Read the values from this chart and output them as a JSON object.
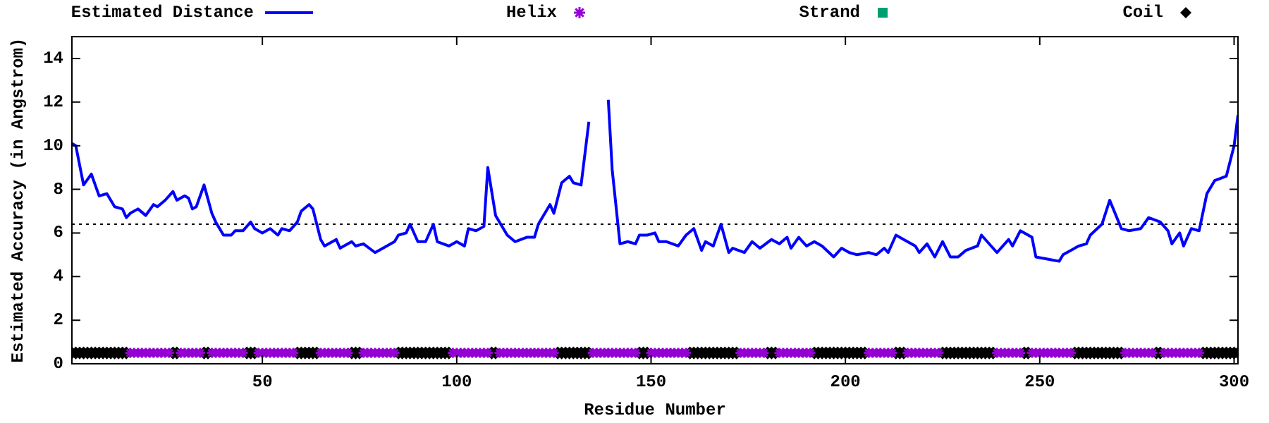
{
  "chart_data": {
    "type": "line",
    "xlabel": "Residue Number",
    "ylabel": "Estimated Accuracy (in Angstrom)",
    "xlim": [
      1,
      301
    ],
    "xticks": [
      50,
      100,
      150,
      200,
      250,
      300
    ],
    "ylim": [
      0,
      15
    ],
    "yticks": [
      0,
      2,
      4,
      6,
      8,
      10,
      12,
      14
    ],
    "legend": "top",
    "ref_lines": [
      {
        "axis": "y",
        "value": 6.4,
        "color": "#000000",
        "line_style": "dotted"
      }
    ],
    "series": [
      {
        "name": "Estimated Distance",
        "color": "#0000ff",
        "marker": "none",
        "x": [
          1,
          2,
          4,
          6,
          8,
          10,
          12,
          14,
          15,
          16,
          18,
          20,
          22,
          23,
          25,
          27,
          28,
          30,
          31,
          32,
          33,
          35,
          37,
          38,
          40,
          42,
          43,
          45,
          47,
          48,
          50,
          52,
          54,
          55,
          57,
          59,
          60,
          62,
          63,
          64,
          65,
          66,
          69,
          70,
          73,
          74,
          76,
          79,
          82,
          84,
          85,
          87,
          88,
          90,
          92,
          94,
          95,
          98,
          100,
          102,
          103,
          105,
          107,
          108,
          110,
          113,
          115,
          118,
          120,
          121,
          124,
          125,
          127,
          129,
          130,
          132,
          134,
          135,
          137,
          139,
          140,
          141,
          142,
          144,
          146,
          147,
          149,
          151,
          152,
          154,
          157,
          159,
          161,
          163,
          164,
          166,
          168,
          170,
          171,
          174,
          176,
          178,
          181,
          183,
          185,
          186,
          188,
          190,
          192,
          194,
          197,
          199,
          201,
          203,
          206,
          208,
          210,
          211,
          213,
          215,
          218,
          219,
          221,
          223,
          225,
          227,
          229,
          231,
          234,
          235,
          239,
          242,
          243,
          245,
          248,
          249,
          252,
          255,
          256,
          260,
          262,
          263,
          266,
          268,
          271,
          273,
          276,
          278,
          281,
          283,
          284,
          286,
          287,
          289,
          291,
          293,
          295,
          298,
          300,
          301
        ],
        "values": [
          10.1,
          10.0,
          8.2,
          8.7,
          7.7,
          7.8,
          7.2,
          7.1,
          6.7,
          6.9,
          7.1,
          6.8,
          7.3,
          7.2,
          7.5,
          7.9,
          7.5,
          7.7,
          7.6,
          7.1,
          7.2,
          8.2,
          6.9,
          6.5,
          5.9,
          5.9,
          6.1,
          6.1,
          6.5,
          6.2,
          6.0,
          6.2,
          5.9,
          6.2,
          6.1,
          6.5,
          7.0,
          7.3,
          7.1,
          6.4,
          5.7,
          5.4,
          5.7,
          5.3,
          5.6,
          5.4,
          5.5,
          5.1,
          5.4,
          5.6,
          5.9,
          6.0,
          6.4,
          5.6,
          5.6,
          6.4,
          5.6,
          5.4,
          5.6,
          5.4,
          6.2,
          6.1,
          6.3,
          9.0,
          6.8,
          5.9,
          5.6,
          5.8,
          5.8,
          6.4,
          7.3,
          6.9,
          8.3,
          8.6,
          8.3,
          8.2,
          11.1,
          null,
          null,
          12.1,
          8.9,
          7.2,
          5.5,
          5.6,
          5.5,
          5.9,
          5.9,
          6.0,
          5.6,
          5.6,
          5.4,
          5.9,
          6.2,
          5.2,
          5.6,
          5.4,
          6.4,
          5.1,
          5.3,
          5.1,
          5.6,
          5.3,
          5.7,
          5.5,
          5.8,
          5.3,
          5.8,
          5.4,
          5.6,
          5.4,
          4.9,
          5.3,
          5.1,
          5.0,
          5.1,
          5.0,
          5.3,
          5.1,
          5.9,
          5.7,
          5.4,
          5.1,
          5.5,
          4.9,
          5.6,
          4.9,
          4.9,
          5.2,
          5.4,
          5.9,
          5.1,
          5.7,
          5.4,
          6.1,
          5.8,
          4.9,
          4.8,
          4.7,
          5.0,
          5.4,
          5.5,
          5.9,
          6.4,
          7.5,
          6.2,
          6.1,
          6.2,
          6.7,
          6.5,
          6.1,
          5.5,
          6.0,
          5.4,
          6.2,
          6.1,
          7.8,
          8.4,
          8.6,
          10.0,
          11.4
        ]
      },
      {
        "name": "Helix",
        "type": "scatter",
        "color": "#9400d3",
        "marker": "cross",
        "x": [
          16,
          17,
          18,
          19,
          20,
          21,
          22,
          23,
          24,
          25,
          26,
          29,
          30,
          31,
          32,
          33,
          34,
          37,
          38,
          39,
          40,
          41,
          42,
          43,
          44,
          45,
          49,
          50,
          51,
          52,
          53,
          54,
          55,
          56,
          57,
          58,
          65,
          66,
          67,
          68,
          69,
          70,
          71,
          72,
          76,
          77,
          78,
          79,
          80,
          81,
          82,
          83,
          84,
          99,
          100,
          101,
          102,
          103,
          104,
          105,
          106,
          107,
          108,
          111,
          112,
          113,
          114,
          115,
          116,
          117,
          118,
          119,
          120,
          121,
          122,
          123,
          124,
          125,
          135,
          136,
          137,
          138,
          139,
          140,
          141,
          142,
          143,
          144,
          145,
          146,
          150,
          151,
          152,
          153,
          154,
          155,
          156,
          157,
          158,
          159,
          173,
          174,
          175,
          176,
          177,
          178,
          179,
          183,
          184,
          185,
          186,
          187,
          188,
          189,
          190,
          191,
          206,
          207,
          208,
          209,
          210,
          211,
          212,
          216,
          217,
          218,
          219,
          220,
          221,
          222,
          223,
          224,
          239,
          240,
          241,
          242,
          243,
          244,
          245,
          248,
          249,
          250,
          251,
          252,
          253,
          254,
          255,
          256,
          257,
          258,
          272,
          273,
          274,
          275,
          276,
          277,
          278,
          279,
          282,
          283,
          284,
          285,
          286,
          287,
          288,
          289,
          290,
          291
        ],
        "values": [
          0.5,
          0.5,
          0.5,
          0.5,
          0.5,
          0.5,
          0.5,
          0.5,
          0.5,
          0.5,
          0.5,
          0.5,
          0.5,
          0.5,
          0.5,
          0.5,
          0.5,
          0.5,
          0.5,
          0.5,
          0.5,
          0.5,
          0.5,
          0.5,
          0.5,
          0.5,
          0.5,
          0.5,
          0.5,
          0.5,
          0.5,
          0.5,
          0.5,
          0.5,
          0.5,
          0.5,
          0.5,
          0.5,
          0.5,
          0.5,
          0.5,
          0.5,
          0.5,
          0.5,
          0.5,
          0.5,
          0.5,
          0.5,
          0.5,
          0.5,
          0.5,
          0.5,
          0.5,
          0.5,
          0.5,
          0.5,
          0.5,
          0.5,
          0.5,
          0.5,
          0.5,
          0.5,
          0.5,
          0.5,
          0.5,
          0.5,
          0.5,
          0.5,
          0.5,
          0.5,
          0.5,
          0.5,
          0.5,
          0.5,
          0.5,
          0.5,
          0.5,
          0.5,
          0.5,
          0.5,
          0.5,
          0.5,
          0.5,
          0.5,
          0.5,
          0.5,
          0.5,
          0.5,
          0.5,
          0.5,
          0.5,
          0.5,
          0.5,
          0.5,
          0.5,
          0.5,
          0.5,
          0.5,
          0.5,
          0.5,
          0.5,
          0.5,
          0.5,
          0.5,
          0.5,
          0.5,
          0.5,
          0.5,
          0.5,
          0.5,
          0.5,
          0.5,
          0.5,
          0.5,
          0.5,
          0.5,
          0.5,
          0.5,
          0.5,
          0.5,
          0.5,
          0.5,
          0.5,
          0.5,
          0.5,
          0.5,
          0.5,
          0.5,
          0.5,
          0.5,
          0.5,
          0.5,
          0.5,
          0.5,
          0.5,
          0.5,
          0.5,
          0.5,
          0.5,
          0.5,
          0.5,
          0.5,
          0.5,
          0.5,
          0.5,
          0.5,
          0.5,
          0.5,
          0.5,
          0.5,
          0.5,
          0.5,
          0.5,
          0.5,
          0.5,
          0.5,
          0.5,
          0.5,
          0.5,
          0.5,
          0.5,
          0.5,
          0.5,
          0.5,
          0.5,
          0.5,
          0.5,
          0.5
        ]
      },
      {
        "name": "Strand",
        "type": "scatter",
        "color": "#009e73",
        "marker": "square"
      },
      {
        "name": "Coil",
        "type": "scatter",
        "color": "#000000",
        "marker": "diamond",
        "x": [
          1,
          2,
          3,
          4,
          5,
          6,
          7,
          8,
          9,
          10,
          11,
          12,
          13,
          14,
          15,
          27,
          28,
          35,
          36,
          46,
          47,
          48,
          59,
          60,
          61,
          62,
          63,
          64,
          73,
          74,
          75,
          85,
          86,
          87,
          88,
          89,
          90,
          91,
          92,
          93,
          94,
          95,
          96,
          97,
          98,
          109,
          110,
          126,
          127,
          128,
          129,
          130,
          131,
          132,
          133,
          134,
          147,
          148,
          149,
          160,
          161,
          162,
          163,
          164,
          165,
          166,
          167,
          168,
          169,
          170,
          171,
          172,
          180,
          181,
          182,
          192,
          193,
          194,
          195,
          196,
          197,
          198,
          199,
          200,
          201,
          202,
          203,
          204,
          205,
          213,
          214,
          215,
          225,
          226,
          227,
          228,
          229,
          230,
          231,
          232,
          233,
          234,
          235,
          236,
          237,
          238,
          246,
          247,
          259,
          260,
          261,
          262,
          263,
          264,
          265,
          266,
          267,
          268,
          269,
          270,
          271,
          280,
          281,
          292,
          293,
          294,
          295,
          296,
          297,
          298,
          299,
          300,
          301
        ],
        "values": [
          0.5,
          0.5,
          0.5,
          0.5,
          0.5,
          0.5,
          0.5,
          0.5,
          0.5,
          0.5,
          0.5,
          0.5,
          0.5,
          0.5,
          0.5,
          0.5,
          0.5,
          0.5,
          0.5,
          0.5,
          0.5,
          0.5,
          0.5,
          0.5,
          0.5,
          0.5,
          0.5,
          0.5,
          0.5,
          0.5,
          0.5,
          0.5,
          0.5,
          0.5,
          0.5,
          0.5,
          0.5,
          0.5,
          0.5,
          0.5,
          0.5,
          0.5,
          0.5,
          0.5,
          0.5,
          0.5,
          0.5,
          0.5,
          0.5,
          0.5,
          0.5,
          0.5,
          0.5,
          0.5,
          0.5,
          0.5,
          0.5,
          0.5,
          0.5,
          0.5,
          0.5,
          0.5,
          0.5,
          0.5,
          0.5,
          0.5,
          0.5,
          0.5,
          0.5,
          0.5,
          0.5,
          0.5,
          0.5,
          0.5,
          0.5,
          0.5,
          0.5,
          0.5,
          0.5,
          0.5,
          0.5,
          0.5,
          0.5,
          0.5,
          0.5,
          0.5,
          0.5,
          0.5,
          0.5,
          0.5,
          0.5,
          0.5,
          0.5,
          0.5,
          0.5,
          0.5,
          0.5,
          0.5,
          0.5,
          0.5,
          0.5,
          0.5,
          0.5,
          0.5,
          0.5,
          0.5,
          0.5,
          0.5,
          0.5,
          0.5,
          0.5,
          0.5,
          0.5,
          0.5,
          0.5,
          0.5,
          0.5,
          0.5,
          0.5,
          0.5,
          0.5,
          0.5,
          0.5,
          0.5,
          0.5,
          0.5,
          0.5,
          0.5,
          0.5,
          0.5,
          0.5,
          0.5,
          0.5
        ]
      }
    ]
  }
}
